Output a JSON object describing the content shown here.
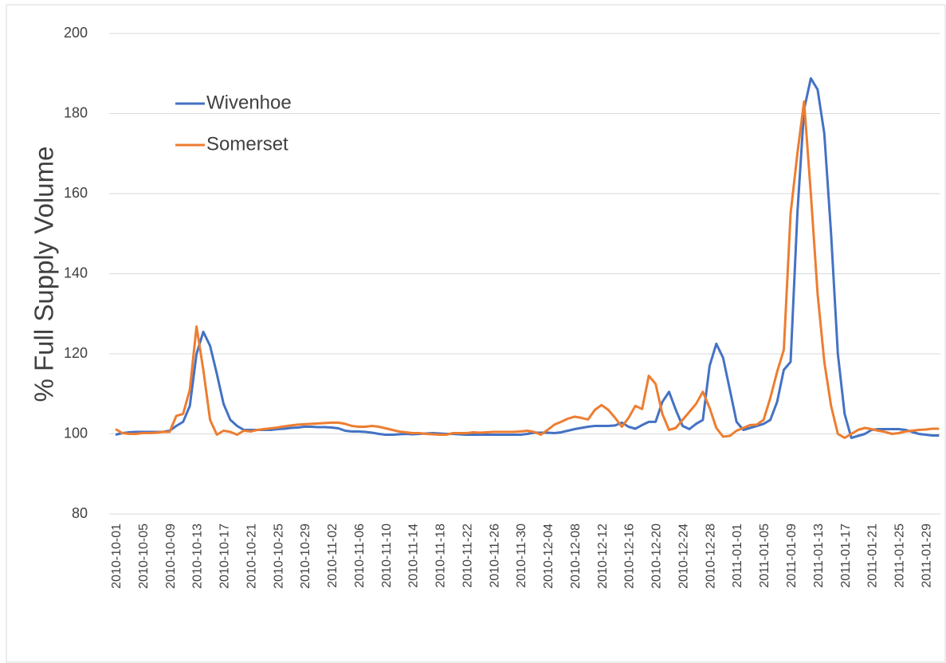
{
  "chart_data": {
    "type": "line",
    "ylabel": "% Full Supply Volume",
    "categories": [
      "2010-10-01",
      null,
      null,
      null,
      "2010-10-05",
      null,
      null,
      null,
      "2010-10-09",
      null,
      null,
      null,
      "2010-10-13",
      null,
      null,
      null,
      "2010-10-17",
      null,
      null,
      null,
      "2010-10-21",
      null,
      null,
      null,
      "2010-10-25",
      null,
      null,
      null,
      "2010-10-29",
      null,
      null,
      null,
      "2010-11-02",
      null,
      null,
      null,
      "2010-11-06",
      null,
      null,
      null,
      "2010-11-10",
      null,
      null,
      null,
      "2010-11-14",
      null,
      null,
      null,
      "2010-11-18",
      null,
      null,
      null,
      "2010-11-22",
      null,
      null,
      null,
      "2010-11-26",
      null,
      null,
      null,
      "2010-11-30",
      null,
      null,
      null,
      "2010-12-04",
      null,
      null,
      null,
      "2010-12-08",
      null,
      null,
      null,
      "2010-12-12",
      null,
      null,
      null,
      "2010-12-16",
      null,
      null,
      null,
      "2010-12-20",
      null,
      null,
      null,
      "2010-12-24",
      null,
      null,
      null,
      "2010-12-28",
      null,
      null,
      null,
      "2011-01-01",
      null,
      null,
      null,
      "2011-01-05",
      null,
      null,
      null,
      "2011-01-09",
      null,
      null,
      null,
      "2011-01-13",
      null,
      null,
      null,
      "2011-01-17",
      null,
      null,
      null,
      "2011-01-21",
      null,
      null,
      null,
      "2011-01-25",
      null,
      null,
      null,
      "2011-01-29",
      null,
      null
    ],
    "series": [
      {
        "name": "Wivenhoe",
        "color": "#4472c4",
        "values": [
          99.8,
          100.2,
          100.4,
          100.5,
          100.5,
          100.5,
          100.5,
          100.5,
          100.8,
          102,
          103,
          107,
          120,
          125.5,
          122,
          115,
          107.5,
          103.5,
          102,
          101,
          101,
          101,
          101,
          101,
          101.2,
          101.3,
          101.5,
          101.6,
          101.8,
          101.8,
          101.7,
          101.7,
          101.6,
          101.4,
          100.8,
          100.6,
          100.6,
          100.5,
          100.3,
          100,
          99.8,
          99.8,
          99.9,
          100,
          99.9,
          100,
          100.1,
          100.2,
          100.1,
          100,
          100,
          99.9,
          99.8,
          99.8,
          99.8,
          99.8,
          99.8,
          99.8,
          99.8,
          99.8,
          99.8,
          100,
          100.3,
          100.3,
          100.3,
          100.2,
          100.4,
          100.8,
          101.2,
          101.5,
          101.8,
          102,
          102,
          102,
          102.1,
          102.8,
          101.8,
          101.3,
          102.2,
          103,
          103,
          108,
          110.5,
          106,
          102,
          101.2,
          102.5,
          103.5,
          117,
          122.5,
          119,
          111,
          103,
          101,
          101.5,
          102,
          102.5,
          103.5,
          108,
          116,
          118,
          155,
          181,
          188.8,
          186,
          175,
          150,
          120,
          105,
          99,
          99.5,
          100,
          101,
          101.2,
          101.2,
          101.2,
          101.2,
          101,
          100.5,
          100,
          99.8,
          99.6,
          99.6
        ]
      },
      {
        "name": "Somerset",
        "color": "#ed7d31",
        "values": [
          101.2,
          100.2,
          100,
          100,
          100.2,
          100.2,
          100.3,
          100.5,
          100.5,
          104.5,
          105,
          111,
          126.8,
          116,
          103.5,
          99.8,
          100.8,
          100.5,
          99.8,
          100.8,
          100.6,
          101,
          101.2,
          101.4,
          101.6,
          101.9,
          102.1,
          102.3,
          102.4,
          102.5,
          102.6,
          102.7,
          102.8,
          102.8,
          102.5,
          102,
          101.8,
          101.8,
          102,
          101.8,
          101.4,
          101,
          100.6,
          100.4,
          100.2,
          100.2,
          100,
          99.9,
          99.8,
          99.8,
          100.2,
          100.2,
          100.2,
          100.4,
          100.3,
          100.4,
          100.5,
          100.5,
          100.5,
          100.5,
          100.6,
          100.8,
          100.5,
          99.8,
          101,
          102.3,
          103,
          103.8,
          104.3,
          104,
          103.6,
          106,
          107.2,
          106,
          104,
          101.8,
          104,
          107,
          106.2,
          114.5,
          112.5,
          105,
          101,
          101.5,
          103.5,
          105.5,
          107.5,
          110.5,
          106.5,
          101.5,
          99.3,
          99.5,
          100.8,
          101.5,
          102.2,
          102.3,
          103.5,
          109,
          115.5,
          121,
          155,
          170,
          183,
          160,
          135,
          118,
          107,
          100,
          99,
          100,
          101,
          101.5,
          101.2,
          100.8,
          100.5,
          100,
          100.2,
          100.6,
          100.8,
          101,
          101.1,
          101.3,
          101.3
        ]
      }
    ],
    "ylim": [
      80,
      200
    ],
    "yticks": [
      80,
      100,
      120,
      140,
      160,
      180,
      200
    ],
    "grid": true,
    "legend": "upper left"
  }
}
